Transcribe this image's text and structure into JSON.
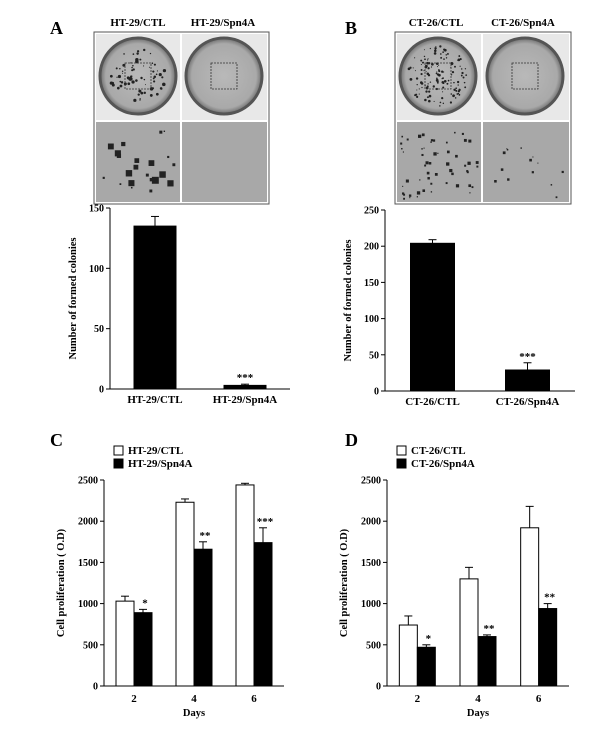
{
  "panels": {
    "A": {
      "letter": "A",
      "conditions": [
        "HT-29/CTL",
        "HT-29/Spn4A"
      ]
    },
    "B": {
      "letter": "B",
      "conditions": [
        "CT-26/CTL",
        "CT-26/Spn4A"
      ]
    },
    "C": {
      "letter": "C"
    },
    "D": {
      "letter": "D"
    }
  },
  "chart_data": [
    {
      "id": "A",
      "type": "bar",
      "categories": [
        "HT-29/CTL",
        "HT-29/Spn4A"
      ],
      "values": [
        135,
        3
      ],
      "errors": [
        8,
        1
      ],
      "significance": [
        "",
        "***"
      ],
      "ylabel": "Number of formed colonies",
      "ylim": [
        0,
        150
      ],
      "yticks": [
        0,
        50,
        100,
        150
      ],
      "bar_color": "#000000"
    },
    {
      "id": "B",
      "type": "bar",
      "categories": [
        "CT-26/CTL",
        "CT-26/Spn4A"
      ],
      "values": [
        204,
        29
      ],
      "errors": [
        5,
        10
      ],
      "significance": [
        "",
        "***"
      ],
      "ylabel": "Number of formed colonies",
      "ylim": [
        0,
        250
      ],
      "yticks": [
        0,
        50,
        100,
        150,
        200,
        250
      ],
      "bar_color": "#000000"
    },
    {
      "id": "C",
      "type": "bar",
      "categories": [
        "2",
        "4",
        "6"
      ],
      "xlabel": "Days",
      "ylabel": "Cell proliferation ( O.D)",
      "ylim": [
        0,
        2500
      ],
      "yticks": [
        0,
        500,
        1000,
        1500,
        2000,
        2500
      ],
      "legend_position": "top-left",
      "series": [
        {
          "name": "HT-29/CTL",
          "values": [
            1030,
            2230,
            2440
          ],
          "errors": [
            60,
            40,
            20
          ],
          "significance": [
            "",
            "",
            ""
          ],
          "fill": "#ffffff"
        },
        {
          "name": "HT-29/Spn4A",
          "values": [
            890,
            1660,
            1740
          ],
          "errors": [
            40,
            90,
            180
          ],
          "significance": [
            "*",
            "**",
            "***"
          ],
          "fill": "#000000"
        }
      ]
    },
    {
      "id": "D",
      "type": "bar",
      "categories": [
        "2",
        "4",
        "6"
      ],
      "xlabel": "Days",
      "ylabel": "Cell proliferation ( O.D)",
      "ylim": [
        0,
        2500
      ],
      "yticks": [
        0,
        500,
        1000,
        1500,
        2000,
        2500
      ],
      "legend_position": "top-left",
      "series": [
        {
          "name": "CT-26/CTL",
          "values": [
            740,
            1300,
            1920
          ],
          "errors": [
            110,
            140,
            260
          ],
          "significance": [
            "",
            "",
            ""
          ],
          "fill": "#ffffff"
        },
        {
          "name": "CT-26/Spn4A",
          "values": [
            470,
            600,
            940
          ],
          "errors": [
            30,
            20,
            60
          ],
          "significance": [
            "*",
            "**",
            "**"
          ],
          "fill": "#000000"
        }
      ]
    }
  ]
}
